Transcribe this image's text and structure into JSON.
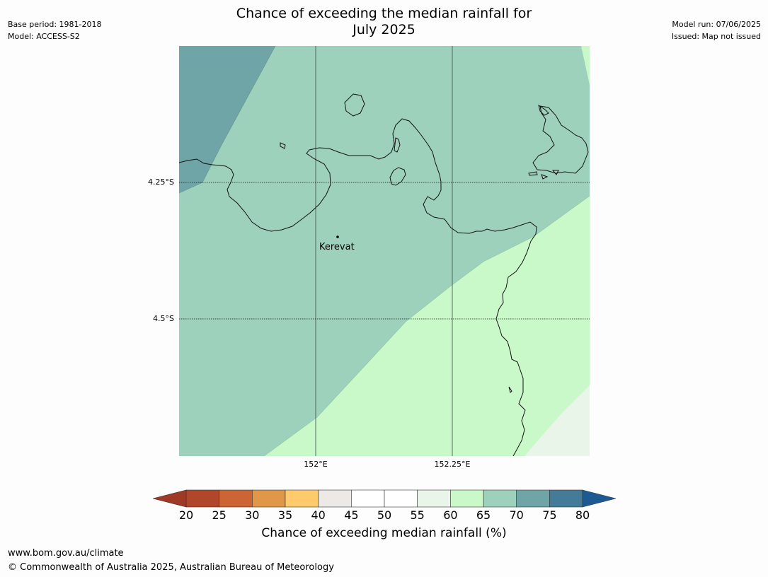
{
  "header": {
    "title_line1": "Chance of exceeding the median rainfall for",
    "title_line2": "July 2025",
    "base_period": "Base period: 1981-2018",
    "model": "Model: ACCESS-S2",
    "model_run": "Model run: 07/06/2025",
    "issued": "Issued: Map not issued"
  },
  "map": {
    "lat_labels": [
      "4.25°S",
      "4.5°S"
    ],
    "lon_labels": [
      "152°E",
      "152.25°E"
    ],
    "place_label": "Kerevat",
    "zone_colors": {
      "band_70_75": "#6fa5a6",
      "band_65_70": "#9ed1bb",
      "band_60_65": "#caf9c9",
      "band_55_60": "#e9f5e9"
    }
  },
  "colorbar": {
    "ticks": [
      "20",
      "25",
      "30",
      "35",
      "40",
      "45",
      "50",
      "55",
      "60",
      "65",
      "70",
      "75",
      "80"
    ],
    "colors": [
      "#b0472a",
      "#cc6433",
      "#e19748",
      "#fdcb6c",
      "#ece9e6",
      "#ffffff",
      "#ffffff",
      "#e9f5e9",
      "#caf9c9",
      "#9ed1bb",
      "#6fa5a6",
      "#437b98"
    ],
    "under_color": "#9e3a26",
    "over_color": "#1d5a94",
    "label": "Chance of exceeding median rainfall (%)"
  },
  "footer": {
    "website": "www.bom.gov.au/climate",
    "copyright": "© Commonwealth of Australia 2025, Australian Bureau of Meteorology"
  }
}
